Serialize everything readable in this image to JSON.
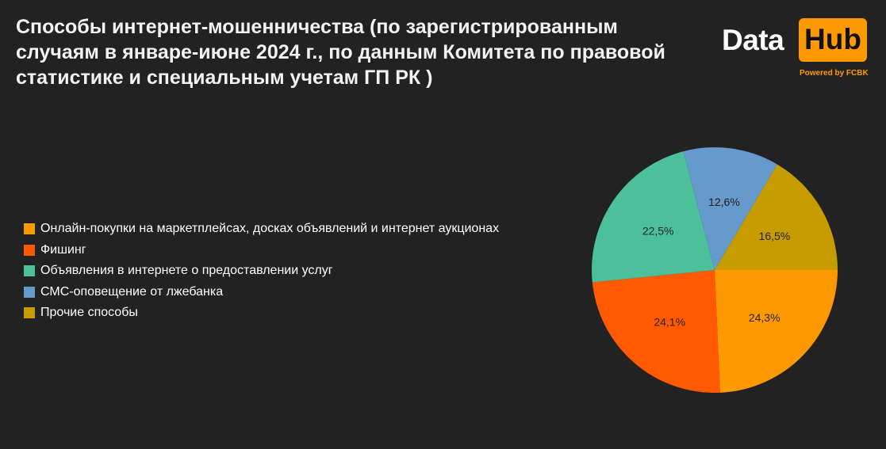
{
  "header": {
    "title": "Способы интернет-мошенничества (по зарегистрированным случаям в январе-июне 2024 г., по данным Комитета по правовой статистике и специальным учетам ГП РК )"
  },
  "logo": {
    "word_data": "Data",
    "word_hub": "Hub",
    "powered": "Powered by FCBK",
    "accent_color": "#ff9900"
  },
  "chart_data": {
    "type": "pie",
    "title": "Способы интернет-мошенничества (по зарегистрированным случаям в январе-июне 2024 г., по данным Комитета по правовой статистике и специальным учетам ГП РК )",
    "legend_position": "left",
    "slices": [
      {
        "label": "Онлайн-покупки на маркетплейсах, досках объявлений и интернет аукционах",
        "value": 24.3,
        "value_label": "24,3%",
        "color": "#ff9900"
      },
      {
        "label": "Фишинг",
        "value": 24.1,
        "value_label": "24,1%",
        "color": "#ff5a00"
      },
      {
        "label": "Объявления в интернете о предоставлении услуг",
        "value": 22.5,
        "value_label": "22,5%",
        "color": "#4cbf9b"
      },
      {
        "label": "СМС-оповещение от лжебанка",
        "value": 12.6,
        "value_label": "12,6%",
        "color": "#6699cc"
      },
      {
        "label": "Прочие способы",
        "value": 16.5,
        "value_label": "16,5%",
        "color": "#c79c00"
      }
    ]
  }
}
